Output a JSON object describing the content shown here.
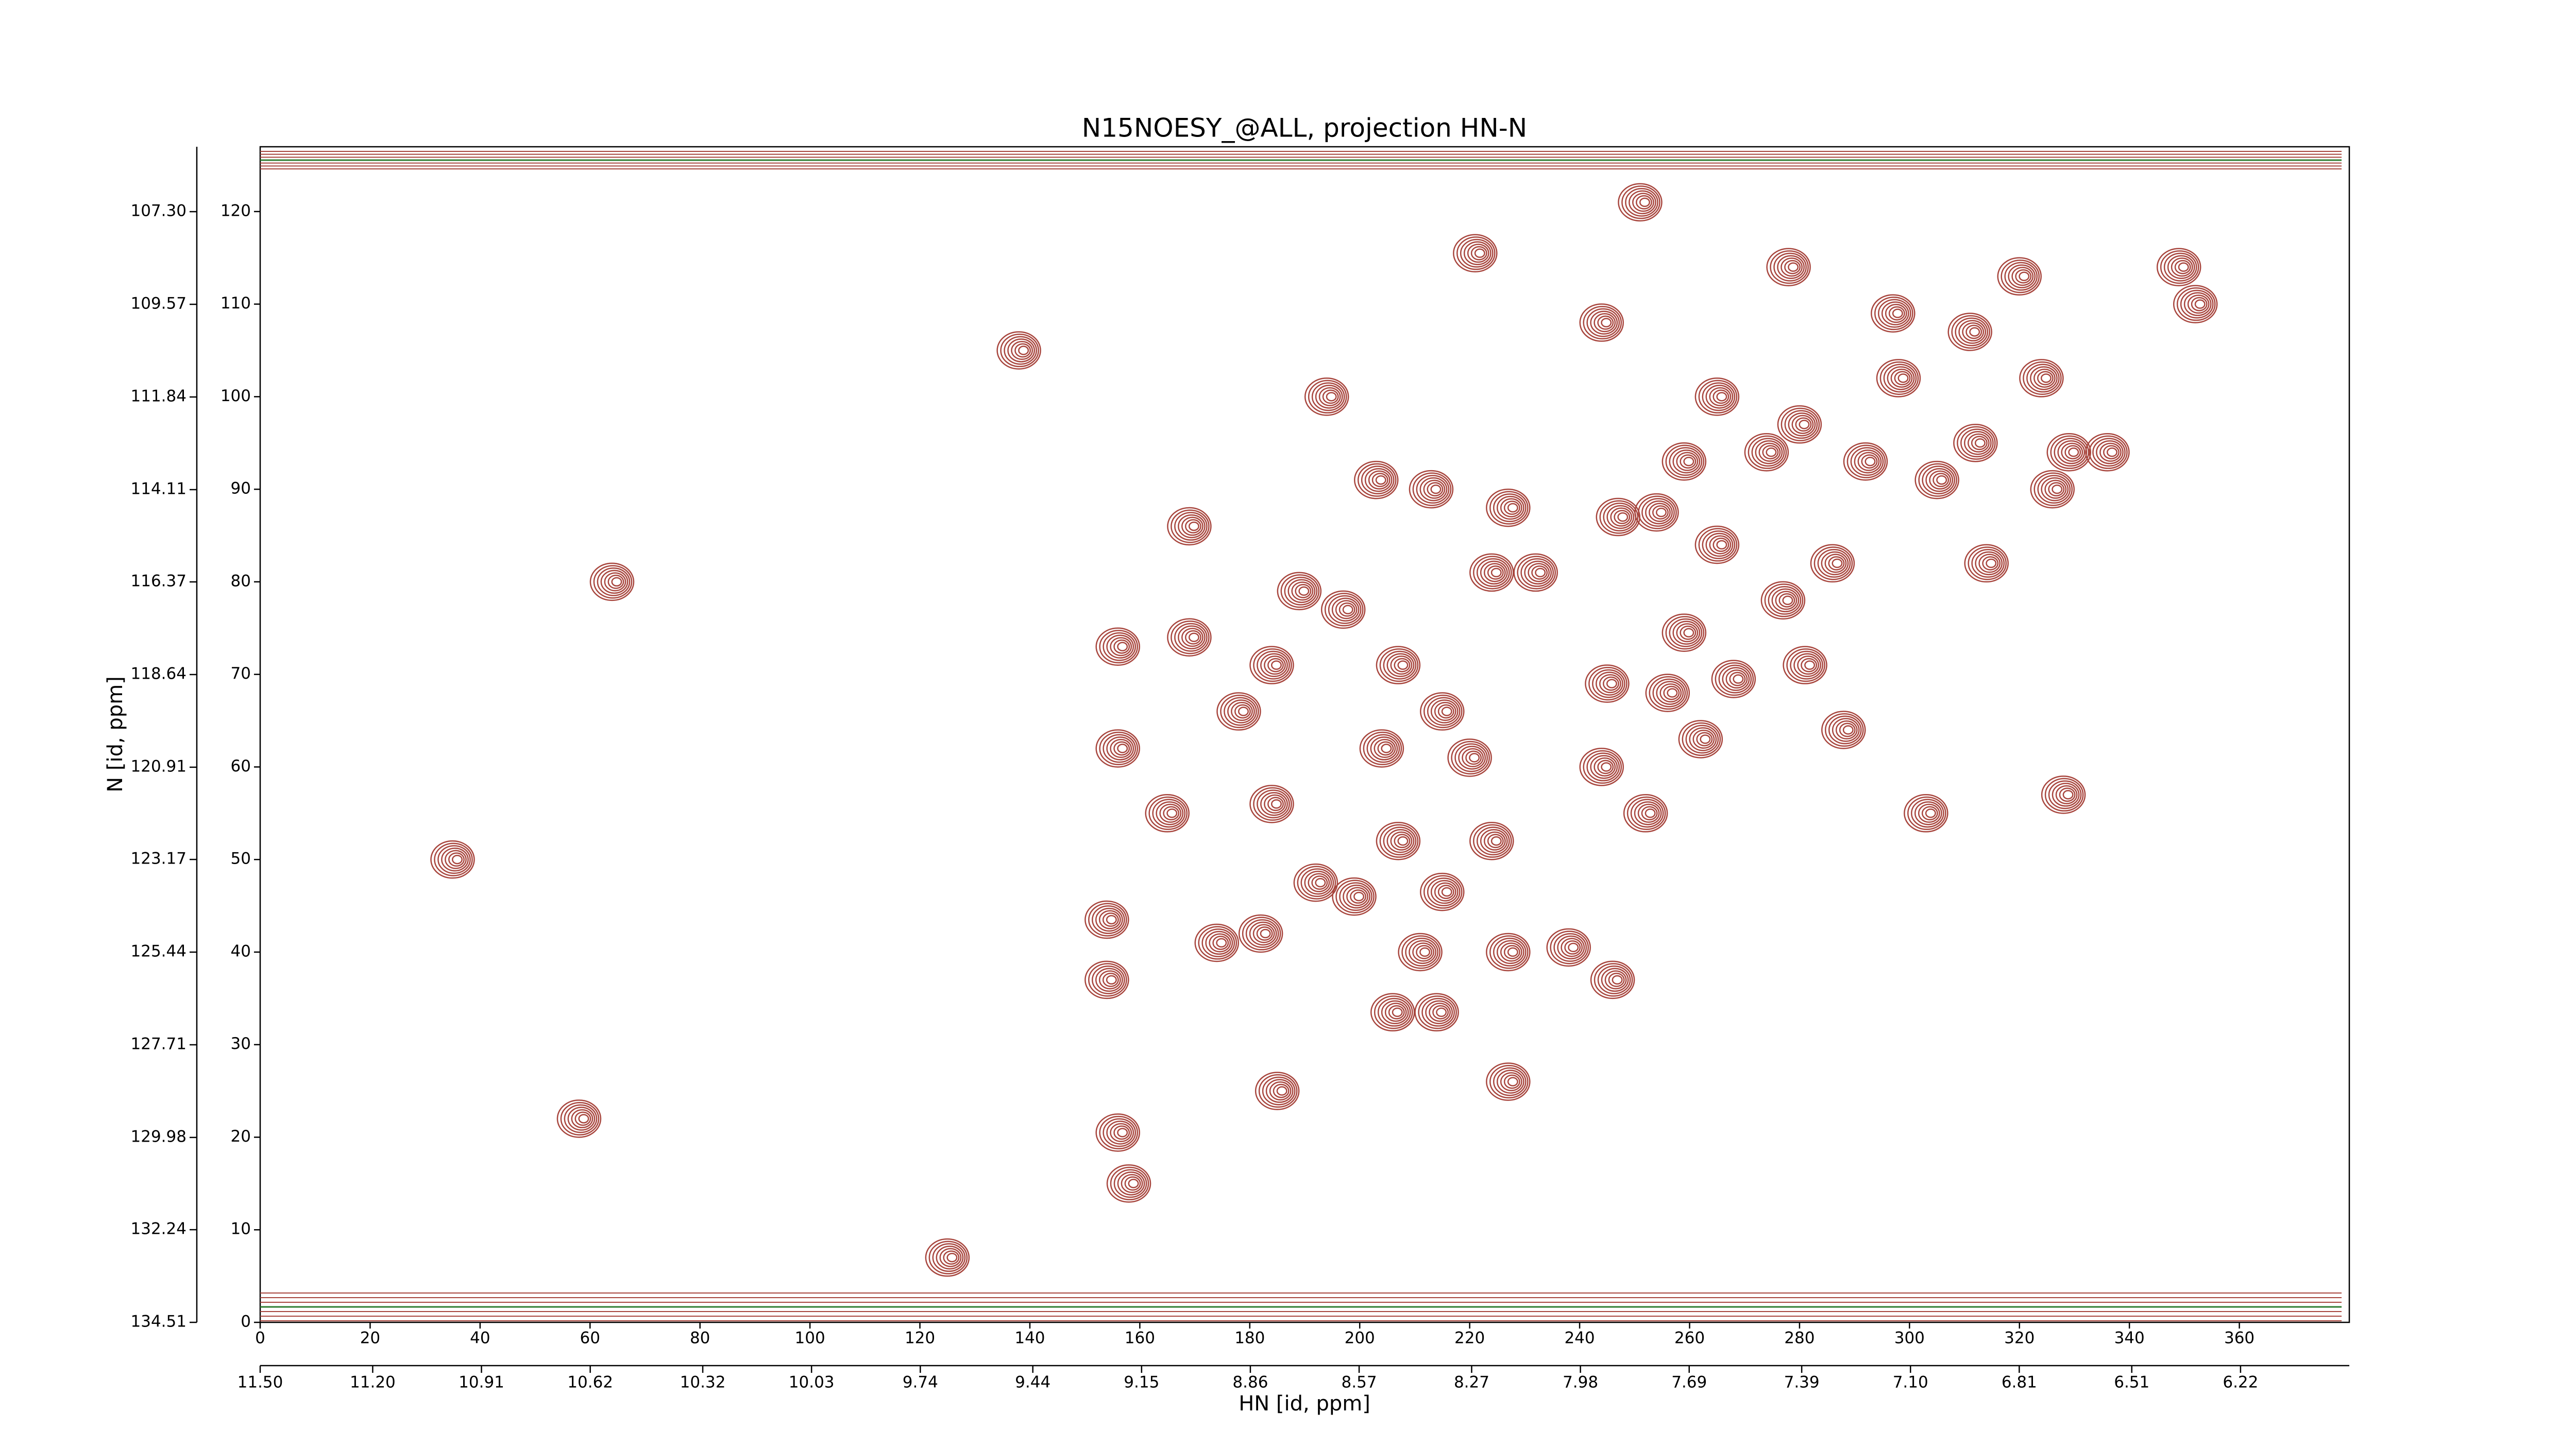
{
  "chart_data": {
    "type": "contour",
    "title": "N15NOESY_@ALL, projection HN-N",
    "xlabel": "HN [id, ppm]",
    "ylabel": "N [id, ppm]",
    "color": "#a8463e",
    "xlim": [
      0,
      380
    ],
    "xticks": [
      0,
      20,
      40,
      60,
      80,
      100,
      120,
      140,
      160,
      180,
      200,
      220,
      240,
      260,
      280,
      300,
      320,
      340,
      360
    ],
    "ylim": [
      0,
      127
    ],
    "yticks": [
      0,
      10,
      20,
      30,
      40,
      50,
      60,
      70,
      80,
      90,
      100,
      110,
      120
    ],
    "x2lim": [
      11.5,
      5.93
    ],
    "x2ticks": [
      {
        "value": 11.5,
        "label": "11.50"
      },
      {
        "value": 11.2,
        "label": "11.20"
      },
      10.91,
      10.62,
      10.32,
      10.03,
      9.74,
      9.44,
      9.15,
      8.86,
      8.57,
      8.27,
      7.98,
      7.69,
      7.39,
      {
        "value": 7.1,
        "label": "7.10"
      },
      6.81,
      6.51,
      6.22
    ],
    "y2lim": [
      134.51,
      105.71
    ],
    "y2ticks": [
      134.51,
      132.24,
      129.98,
      127.71,
      125.44,
      123.17,
      120.91,
      118.64,
      116.37,
      114.11,
      111.84,
      109.57,
      {
        "value": 107.3,
        "label": "107.30"
      }
    ],
    "peaks": {
      "x": [
        35,
        64,
        58,
        125,
        138,
        169,
        169,
        156,
        156,
        165,
        154,
        154,
        156,
        158,
        185,
        184,
        182,
        174,
        178,
        184,
        189,
        197,
        194,
        221,
        251,
        244,
        203,
        213,
        227,
        224,
        232,
        207,
        215,
        220,
        204,
        207,
        224,
        215,
        199,
        192,
        211,
        227,
        206,
        214,
        227,
        238,
        246,
        244,
        252,
        245,
        256,
        259,
        262,
        268,
        281,
        288,
        277,
        286,
        265,
        247,
        254,
        259,
        265,
        274,
        280,
        292,
        278,
        297,
        298,
        311,
        305,
        312,
        314,
        303,
        328,
        320,
        329,
        336,
        324,
        352,
        349,
        326
      ],
      "y": [
        50,
        80,
        22,
        7,
        105,
        86,
        74,
        73,
        62,
        55,
        43.5,
        37,
        20.5,
        15,
        25,
        56,
        42,
        41,
        66,
        71,
        79,
        77,
        100,
        115.5,
        121,
        108,
        91,
        90,
        88,
        81,
        81,
        71,
        66,
        61,
        62,
        52,
        52,
        46.5,
        46,
        47.5,
        40,
        40,
        33.5,
        33.5,
        26,
        40.5,
        37,
        60,
        55,
        69,
        68,
        74.5,
        63,
        69.5,
        71,
        64,
        78,
        82,
        84,
        87,
        87.5,
        93,
        100,
        94,
        97,
        93,
        114,
        109,
        102,
        107,
        91,
        95,
        82,
        55,
        57,
        113,
        94,
        94,
        102,
        110,
        114,
        90
      ]
    }
  }
}
